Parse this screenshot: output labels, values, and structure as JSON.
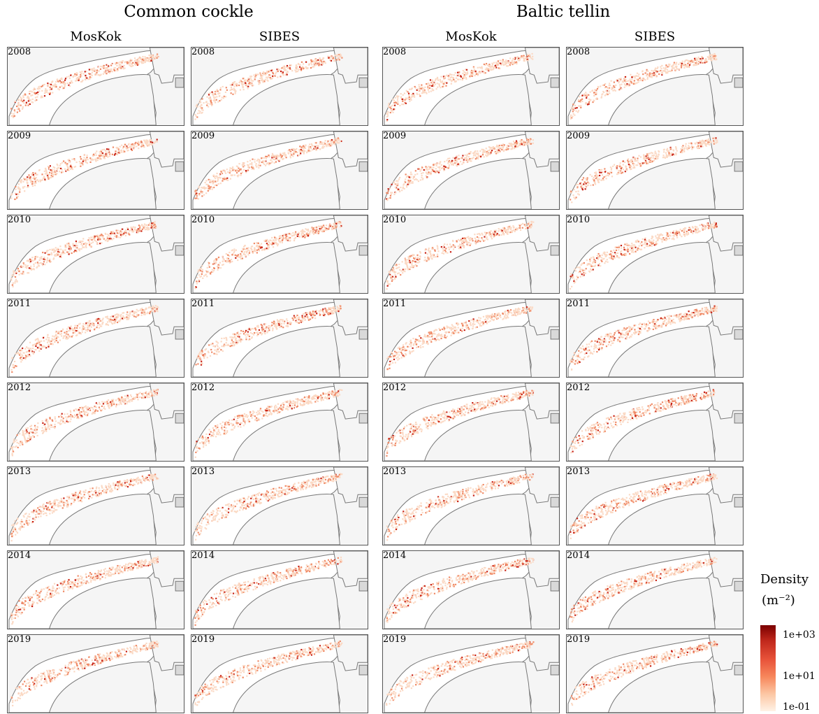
{
  "species": [
    "Common cockle",
    "Baltic tellin"
  ],
  "columns": [
    "MosKok",
    "SIBES",
    "MosKok",
    "SIBES"
  ],
  "years": [
    "2008",
    "2009",
    "2010",
    "2011",
    "2012",
    "2013",
    "2014",
    "2019"
  ],
  "legend": {
    "title": "Density",
    "unit": "(m⁻²)",
    "labels": [
      "1e+03",
      "1e+01",
      "1e-01"
    ],
    "colors": [
      "#7b0000",
      "#c0281c",
      "#e8533a",
      "#f7875c",
      "#fcc7a4",
      "#fff2e6"
    ]
  },
  "map_colors": {
    "sea": "#f5f5f5",
    "land": "#d9d9d9",
    "boundary": "#777777",
    "low_density": "#fbd9c4",
    "mid_density": "#f08a66",
    "high_density": "#c81f12"
  }
}
